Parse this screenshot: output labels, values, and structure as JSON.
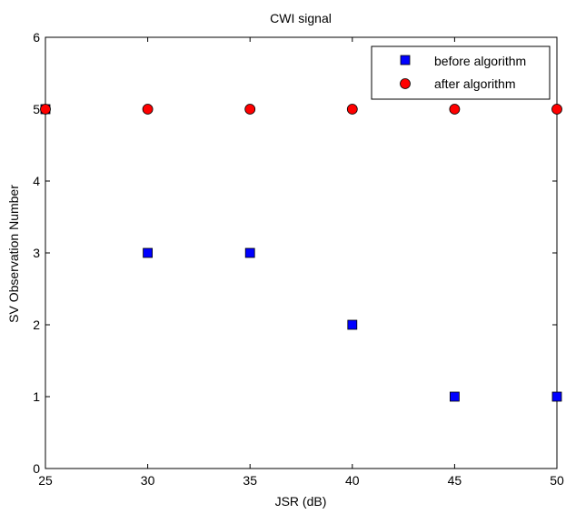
{
  "chart_data": {
    "type": "scatter",
    "title": "CWI signal",
    "xlabel": "JSR (dB)",
    "ylabel": "SV Observation Number",
    "xlim": [
      25,
      50
    ],
    "ylim": [
      0,
      6
    ],
    "xticks": [
      25,
      30,
      35,
      40,
      45,
      50
    ],
    "yticks": [
      0,
      1,
      2,
      3,
      4,
      5,
      6
    ],
    "grid": false,
    "legend_position": "top-right",
    "series": [
      {
        "name": "before algorithm",
        "marker": "square",
        "color": "#0000ff",
        "x": [
          25,
          30,
          35,
          40,
          45,
          50
        ],
        "y": [
          5,
          3,
          3,
          2,
          1,
          1
        ]
      },
      {
        "name": "after algorithm",
        "marker": "circle",
        "color": "#ff0000",
        "x": [
          25,
          30,
          35,
          40,
          45,
          50
        ],
        "y": [
          5,
          5,
          5,
          5,
          5,
          5
        ]
      }
    ]
  }
}
